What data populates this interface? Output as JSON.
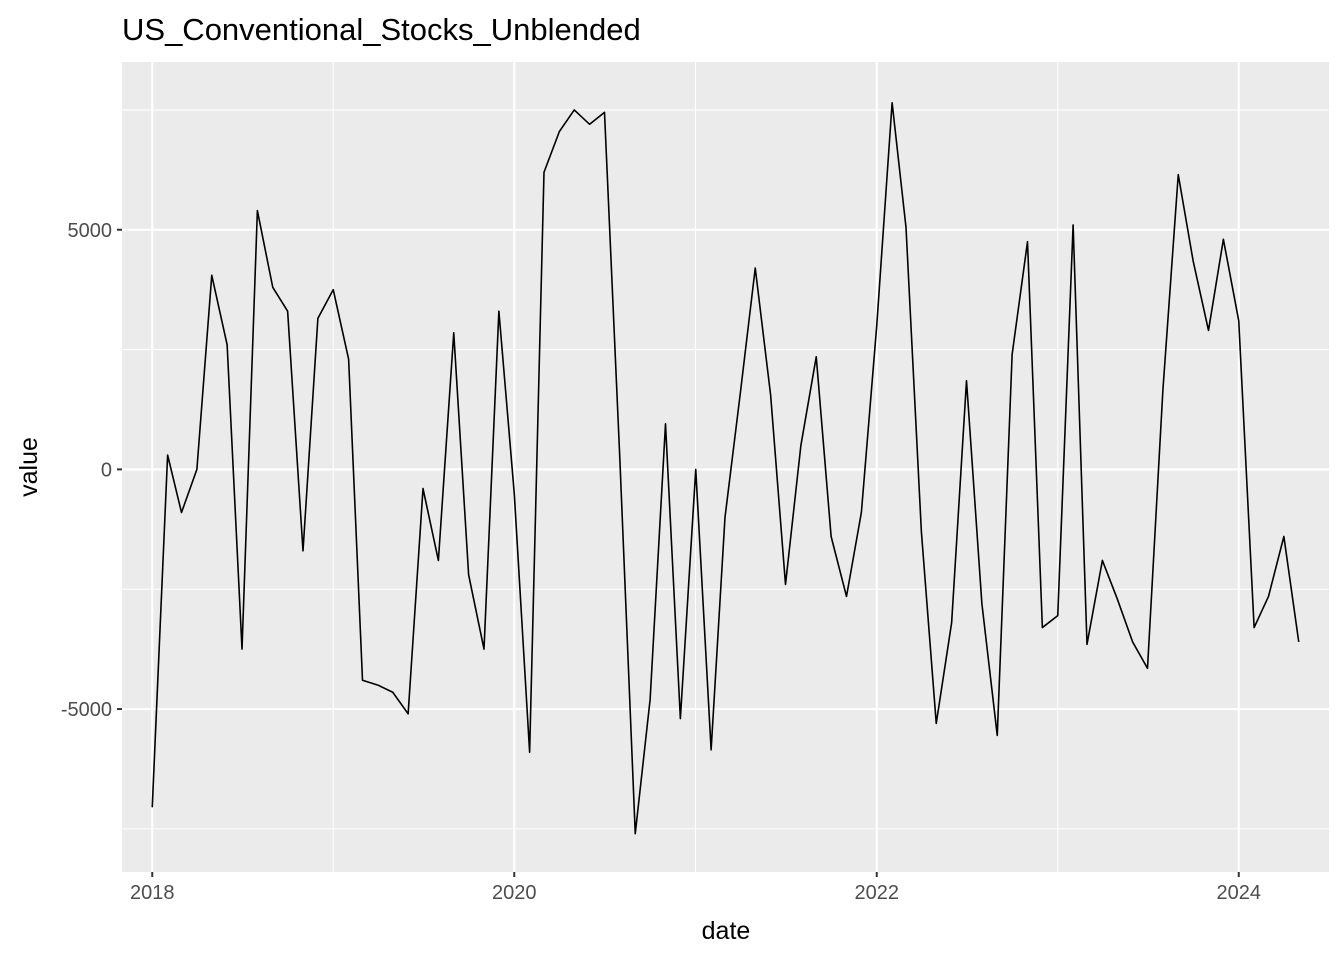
{
  "chart_data": {
    "type": "line",
    "title": "US_Conventional_Stocks_Unblended",
    "xlabel": "date",
    "ylabel": "value",
    "x_tick_labels": [
      "2018",
      "2020",
      "2022",
      "2024"
    ],
    "y_tick_labels": [
      "-5000",
      "0",
      "5000"
    ],
    "y_ticks": [
      -5000,
      0,
      5000
    ],
    "xlim": [
      "2017-11-01",
      "2024-07-01"
    ],
    "ylim": [
      -8400,
      8500
    ],
    "grid": true,
    "legend": "none",
    "colors": {
      "panel": "#ebebeb",
      "grid": "#ffffff",
      "line": "#000000"
    },
    "series": [
      {
        "x": [
          "2018-01",
          "2018-02",
          "2018-03",
          "2018-04",
          "2018-05",
          "2018-06",
          "2018-07",
          "2018-08",
          "2018-09",
          "2018-10",
          "2018-11",
          "2018-12",
          "2019-01",
          "2019-02",
          "2019-03",
          "2019-04",
          "2019-05",
          "2019-06",
          "2019-07",
          "2019-08",
          "2019-09",
          "2019-10",
          "2019-11",
          "2019-12",
          "2020-01",
          "2020-02",
          "2020-03",
          "2020-04",
          "2020-05",
          "2020-06",
          "2020-07",
          "2020-08",
          "2020-09",
          "2020-10",
          "2020-11",
          "2020-12",
          "2021-01",
          "2021-02",
          "2021-03",
          "2021-04",
          "2021-05",
          "2021-06",
          "2021-07",
          "2021-08",
          "2021-09",
          "2021-10",
          "2021-11",
          "2021-12",
          "2022-01",
          "2022-02",
          "2022-03",
          "2022-04",
          "2022-05",
          "2022-06",
          "2022-07",
          "2022-08",
          "2022-09",
          "2022-10",
          "2022-11",
          "2022-12",
          "2023-01",
          "2023-02",
          "2023-03",
          "2023-04",
          "2023-05",
          "2023-06",
          "2023-07",
          "2023-08",
          "2023-09",
          "2023-10",
          "2023-11",
          "2023-12",
          "2024-01",
          "2024-02",
          "2024-03",
          "2024-04",
          "2024-05"
        ],
        "y": [
          -7050,
          300,
          -900,
          0,
          4050,
          2600,
          -3750,
          5400,
          3800,
          3300,
          -1700,
          3150,
          3750,
          2300,
          -4400,
          -4500,
          -4650,
          -5100,
          -400,
          -1900,
          2850,
          -2200,
          -3750,
          3300,
          -500,
          -5900,
          6200,
          7050,
          7500,
          7200,
          7450,
          200,
          -7600,
          -4800,
          950,
          -5200,
          0,
          -5850,
          -1000,
          1600,
          4200,
          1550,
          -2400,
          500,
          2350,
          -1400,
          -2650,
          -900,
          3000,
          7650,
          5050,
          -1300,
          -5300,
          -3200,
          1850,
          -2800,
          -5550,
          2400,
          4750,
          -3300,
          -3050,
          5100,
          -3650,
          -1900,
          -2700,
          -3600,
          -4150,
          1650,
          6150,
          4350,
          2900,
          4800,
          3100,
          -3300,
          -2650,
          -1400,
          -3600
        ]
      }
    ]
  }
}
